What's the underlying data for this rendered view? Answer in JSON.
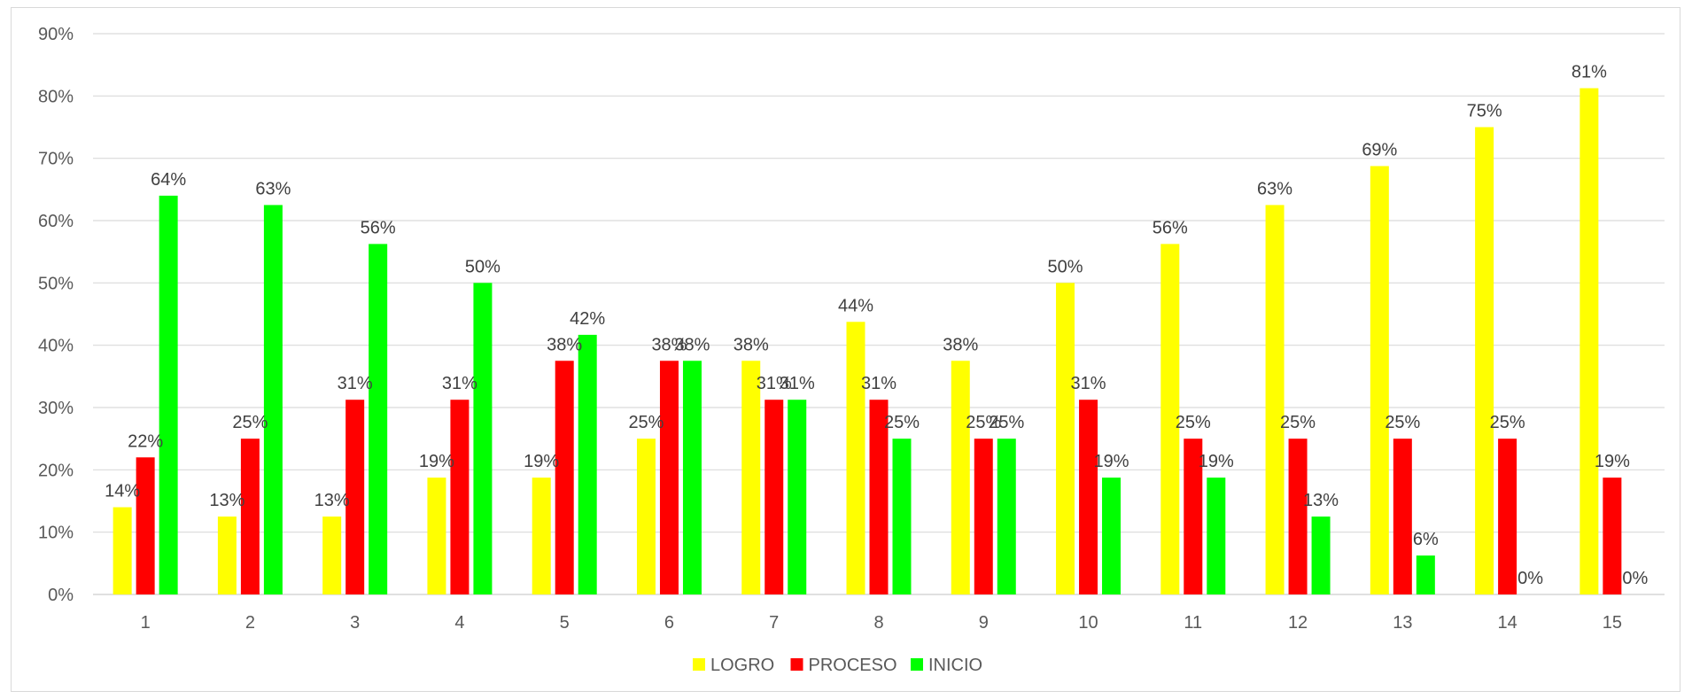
{
  "chart_data": {
    "type": "bar",
    "title": "",
    "xlabel": "",
    "ylabel": "",
    "categories": [
      "1",
      "2",
      "3",
      "4",
      "5",
      "6",
      "7",
      "8",
      "9",
      "10",
      "11",
      "12",
      "13",
      "14",
      "15"
    ],
    "ylim": [
      0,
      90
    ],
    "y_ticks": [
      "0%",
      "10%",
      "20%",
      "30%",
      "40%",
      "50%",
      "60%",
      "70%",
      "80%",
      "90%"
    ],
    "grid": true,
    "legend_position": "bottom",
    "series": [
      {
        "name": "LOGRO",
        "color": "#ffff00",
        "values": [
          14,
          12.5,
          12.5,
          18.75,
          18.75,
          25,
          37.5,
          43.75,
          37.5,
          50,
          56.25,
          62.5,
          68.75,
          75,
          81.25
        ],
        "labels": [
          "14%",
          "13%",
          "13%",
          "19%",
          "19%",
          "25%",
          "38%",
          "44%",
          "38%",
          "50%",
          "56%",
          "63%",
          "69%",
          "75%",
          "81%"
        ]
      },
      {
        "name": "PROCESO",
        "color": "#ff0000",
        "values": [
          22,
          25,
          31.25,
          31.25,
          37.5,
          37.5,
          31.25,
          31.25,
          25,
          31.25,
          25,
          25,
          25,
          25,
          18.75
        ],
        "labels": [
          "22%",
          "25%",
          "31%",
          "31%",
          "38%",
          "38%",
          "31%",
          "31%",
          "25%",
          "31%",
          "25%",
          "25%",
          "25%",
          "25%",
          "19%"
        ]
      },
      {
        "name": "INICIO",
        "color": "#00ff00",
        "values": [
          64,
          62.5,
          56.25,
          50,
          41.67,
          37.5,
          31.25,
          25,
          25,
          18.75,
          18.75,
          12.5,
          6.25,
          0,
          0
        ],
        "labels": [
          "64%",
          "63%",
          "56%",
          "50%",
          "42%",
          "38%",
          "31%",
          "25%",
          "25%",
          "19%",
          "19%",
          "13%",
          "6%",
          "0%",
          "0%"
        ]
      }
    ]
  }
}
